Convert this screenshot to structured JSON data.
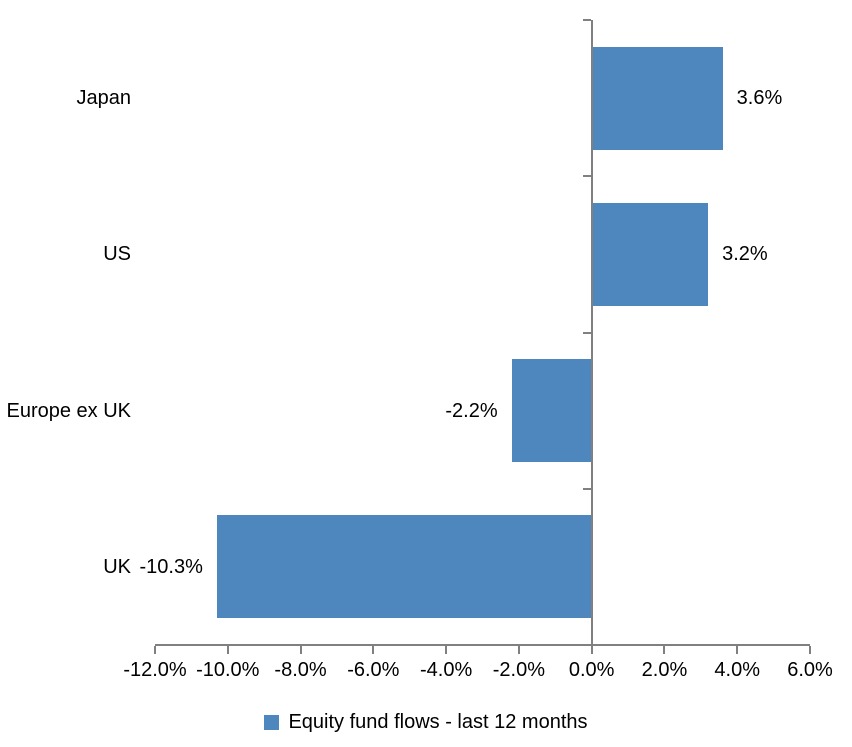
{
  "chart_data": {
    "type": "bar",
    "orientation": "horizontal",
    "title": "",
    "categories": [
      "Japan",
      "US",
      "Europe ex UK",
      "UK"
    ],
    "values": [
      3.6,
      3.2,
      -2.2,
      -10.3
    ],
    "data_labels": [
      "3.6%",
      "3.2%",
      "-2.2%",
      "-10.3%"
    ],
    "series_name": "Equity fund flows - last 12 months",
    "xlim": [
      -12,
      6
    ],
    "xticks": [
      -12,
      -10,
      -8,
      -6,
      -4,
      -2,
      0,
      2,
      4,
      6
    ],
    "xtick_labels": [
      "-12.0%",
      "-10.0%",
      "-8.0%",
      "-6.0%",
      "-4.0%",
      "-2.0%",
      "0.0%",
      "2.0%",
      "4.0%",
      "6.0%"
    ],
    "legend": {
      "position": "bottom",
      "entries": [
        "Equity fund flows - last 12 months"
      ]
    },
    "grid": "off",
    "colors": {
      "bar": "#4E87BE",
      "axis": "#808080",
      "text": "#000000",
      "background": "#FFFFFF"
    }
  }
}
